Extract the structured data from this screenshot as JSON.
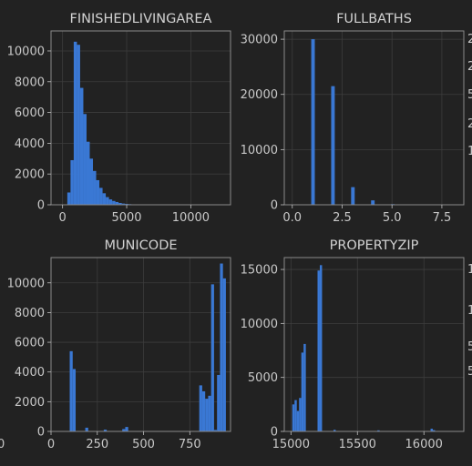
{
  "colors": {
    "background": "#222222",
    "bar": "#3a78d4",
    "grid": "#3d3d3d",
    "frame": "#8a8a8a",
    "text": "#c8c8c8"
  },
  "chart_data": [
    {
      "type": "bar",
      "title": "FINISHEDLIVINGAREA",
      "grid": true,
      "xlim": [
        -900,
        13100
      ],
      "ylim": [
        0,
        11300
      ],
      "xticks": [
        0,
        5000,
        10000
      ],
      "yticks": [
        0,
        2000,
        4000,
        6000,
        8000,
        10000
      ],
      "bins": [
        {
          "x0": 370,
          "x1": 620,
          "y": 800
        },
        {
          "x0": 620,
          "x1": 870,
          "y": 2900
        },
        {
          "x0": 870,
          "x1": 1120,
          "y": 10600
        },
        {
          "x0": 1120,
          "x1": 1370,
          "y": 10400
        },
        {
          "x0": 1370,
          "x1": 1620,
          "y": 7600
        },
        {
          "x0": 1620,
          "x1": 1870,
          "y": 5900
        },
        {
          "x0": 1870,
          "x1": 2120,
          "y": 4100
        },
        {
          "x0": 2120,
          "x1": 2370,
          "y": 3000
        },
        {
          "x0": 2370,
          "x1": 2620,
          "y": 2200
        },
        {
          "x0": 2620,
          "x1": 2870,
          "y": 1600
        },
        {
          "x0": 2870,
          "x1": 3120,
          "y": 1100
        },
        {
          "x0": 3120,
          "x1": 3370,
          "y": 750
        },
        {
          "x0": 3370,
          "x1": 3620,
          "y": 500
        },
        {
          "x0": 3620,
          "x1": 3870,
          "y": 350
        },
        {
          "x0": 3870,
          "x1": 4120,
          "y": 250
        },
        {
          "x0": 4120,
          "x1": 4370,
          "y": 180
        },
        {
          "x0": 4370,
          "x1": 4620,
          "y": 120
        },
        {
          "x0": 4620,
          "x1": 4870,
          "y": 80
        },
        {
          "x0": 4870,
          "x1": 5120,
          "y": 60
        },
        {
          "x0": 5120,
          "x1": 5370,
          "y": 40
        },
        {
          "x0": 5370,
          "x1": 5870,
          "y": 25
        }
      ]
    },
    {
      "type": "bar",
      "title": "FULLBATHS",
      "grid": true,
      "xlim": [
        -0.4,
        8.6
      ],
      "ylim": [
        0,
        31500
      ],
      "xticks": [
        0.0,
        2.5,
        5.0,
        7.5
      ],
      "yticks": [
        0,
        10000,
        20000,
        30000
      ],
      "bins": [
        {
          "x0": 0.95,
          "x1": 1.13,
          "y": 30000
        },
        {
          "x0": 1.95,
          "x1": 2.13,
          "y": 21500
        },
        {
          "x0": 2.95,
          "x1": 3.13,
          "y": 3200
        },
        {
          "x0": 3.95,
          "x1": 4.13,
          "y": 800
        },
        {
          "x0": 4.95,
          "x1": 5.13,
          "y": 120
        },
        {
          "x0": 5.95,
          "x1": 6.13,
          "y": 30
        }
      ]
    },
    {
      "type": "bar",
      "title": "MUNICODE",
      "grid": true,
      "xlim": [
        0,
        970
      ],
      "ylim": [
        0,
        11700
      ],
      "xticks": [
        0,
        250,
        500,
        750
      ],
      "yticks": [
        0,
        2000,
        4000,
        6000,
        8000,
        10000
      ],
      "bins": [
        {
          "x0": 101,
          "x1": 117,
          "y": 5400
        },
        {
          "x0": 117,
          "x1": 133,
          "y": 4200
        },
        {
          "x0": 185,
          "x1": 201,
          "y": 250
        },
        {
          "x0": 285,
          "x1": 301,
          "y": 120
        },
        {
          "x0": 385,
          "x1": 401,
          "y": 160
        },
        {
          "x0": 401,
          "x1": 417,
          "y": 300
        },
        {
          "x0": 801,
          "x1": 817,
          "y": 3100
        },
        {
          "x0": 817,
          "x1": 833,
          "y": 2700
        },
        {
          "x0": 833,
          "x1": 849,
          "y": 2200
        },
        {
          "x0": 849,
          "x1": 865,
          "y": 2400
        },
        {
          "x0": 865,
          "x1": 881,
          "y": 9900
        },
        {
          "x0": 881,
          "x1": 897,
          "y": 100
        },
        {
          "x0": 897,
          "x1": 913,
          "y": 3800
        },
        {
          "x0": 913,
          "x1": 929,
          "y": 11300
        },
        {
          "x0": 929,
          "x1": 945,
          "y": 10300
        }
      ]
    },
    {
      "type": "bar",
      "title": "PROPERTYZIP",
      "grid": true,
      "xlim": [
        14950,
        16300
      ],
      "ylim": [
        0,
        16100
      ],
      "xticks": [
        15000,
        15500,
        16000
      ],
      "yticks": [
        0,
        5000,
        10000,
        15000
      ],
      "bins": [
        {
          "x0": 15010,
          "x1": 15027,
          "y": 2500
        },
        {
          "x0": 15027,
          "x1": 15044,
          "y": 2900
        },
        {
          "x0": 15044,
          "x1": 15061,
          "y": 1900
        },
        {
          "x0": 15061,
          "x1": 15078,
          "y": 3100
        },
        {
          "x0": 15078,
          "x1": 15095,
          "y": 7300
        },
        {
          "x0": 15095,
          "x1": 15112,
          "y": 8100
        },
        {
          "x0": 15200,
          "x1": 15217,
          "y": 14900
        },
        {
          "x0": 15217,
          "x1": 15234,
          "y": 15400
        },
        {
          "x0": 15320,
          "x1": 15337,
          "y": 150
        },
        {
          "x0": 15650,
          "x1": 15667,
          "y": 100
        },
        {
          "x0": 16050,
          "x1": 16067,
          "y": 250
        },
        {
          "x0": 16067,
          "x1": 16084,
          "y": 120
        }
      ]
    }
  ],
  "edge_labels": {
    "bottom_left_tick": "0",
    "right_edge_ticks": [
      "2",
      "2",
      "5",
      "2",
      "1",
      "1",
      "1",
      "5",
      "5"
    ]
  }
}
